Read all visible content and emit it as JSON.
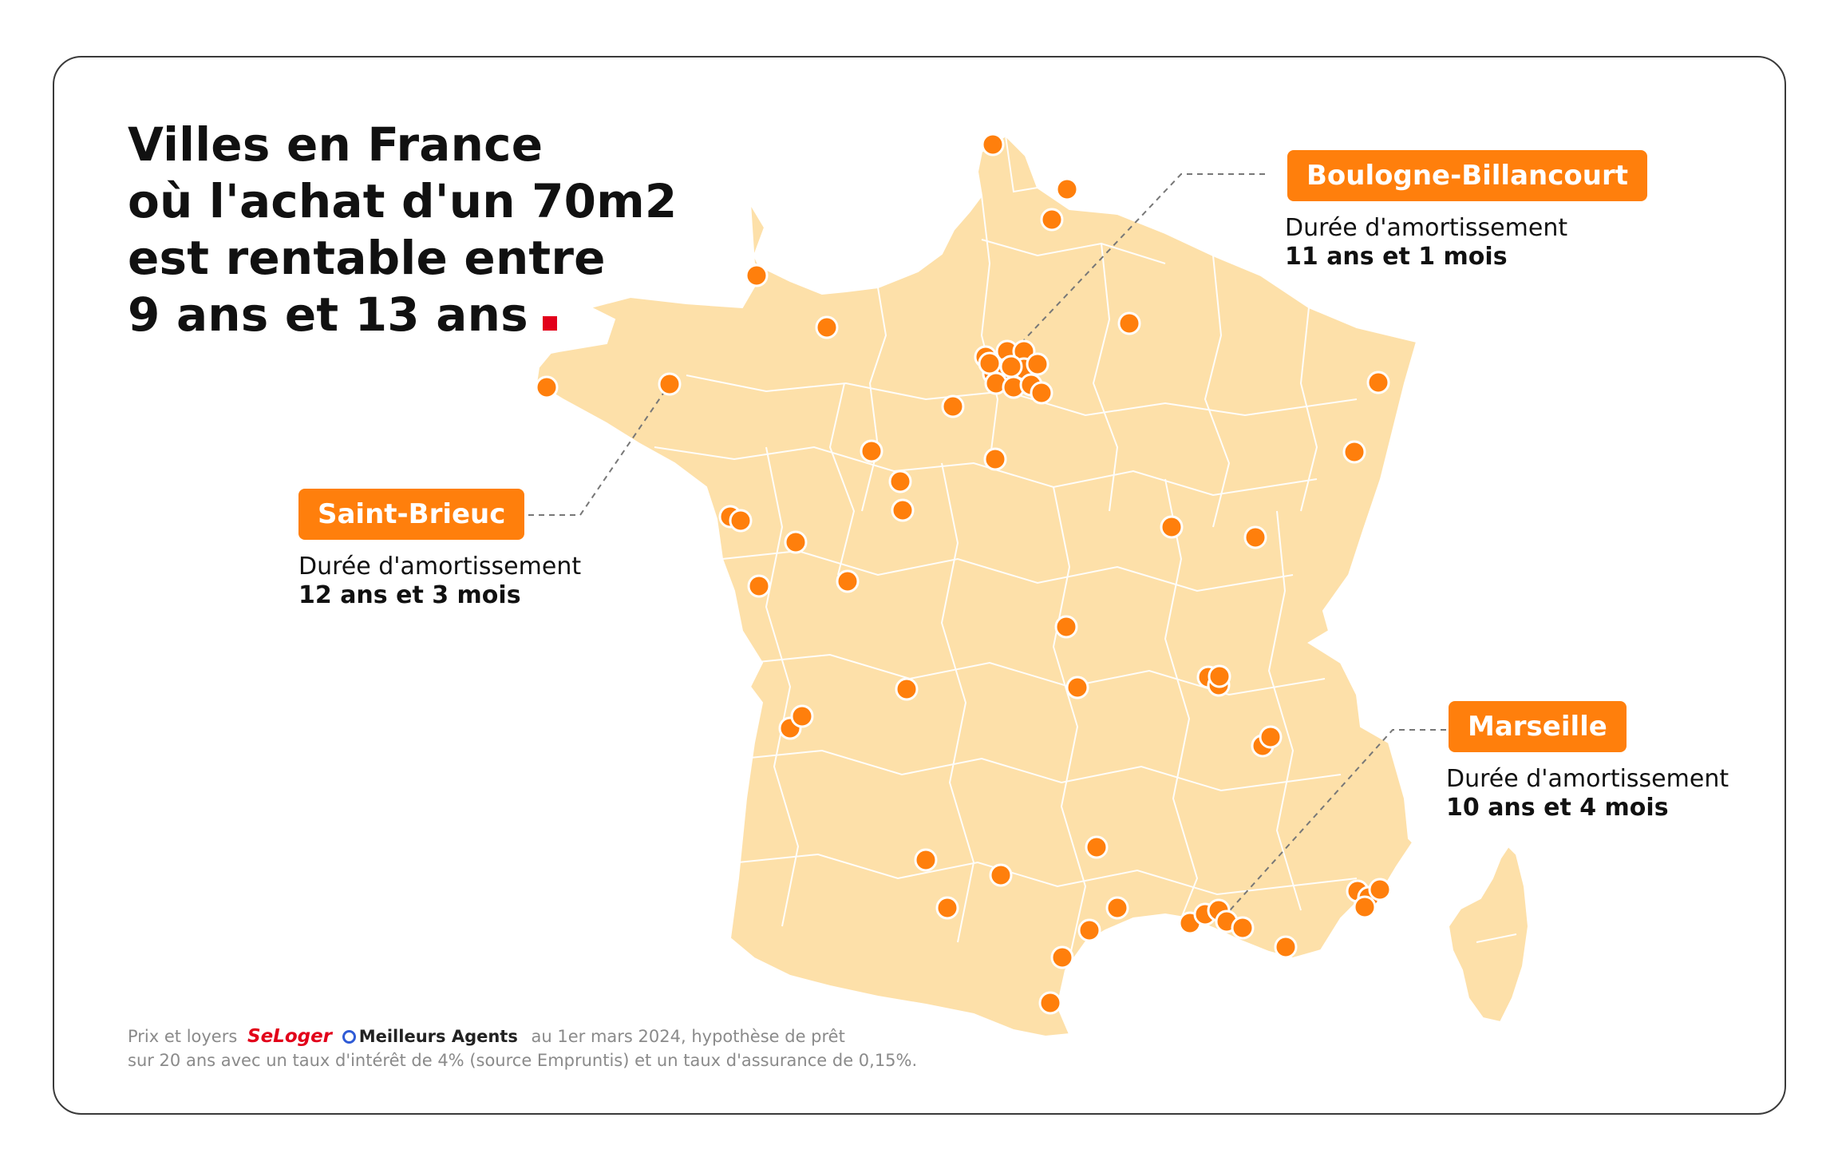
{
  "title": {
    "line1": "Villes en France",
    "line2": "où l'achat d'un 70m2",
    "line3": "est rentable entre",
    "line4": "9 ans et 13 ans"
  },
  "callouts": [
    {
      "city": "Boulogne-Billancourt",
      "label": "Durée d'amortissement",
      "value": "11 ans et 1 mois"
    },
    {
      "city": "Saint-Brieuc",
      "label": "Durée d'amortissement",
      "value": "12 ans et 3 mois"
    },
    {
      "city": "Marseille",
      "label": "Durée d'amortissement",
      "value": "10 ans et 4 mois"
    }
  ],
  "footer": {
    "prefix": "Prix et loyers",
    "brand1": "SeLoger",
    "brand2": "Meilleurs Agents",
    "line1_suffix": "au 1er mars 2024, hypothèse de prêt",
    "line2": "sur 20 ans avec un taux d'intérêt de 4% (source Empruntis) et un taux d'assurance de 0,15%."
  },
  "colors": {
    "marker": "#ff7f0c",
    "land": "#fde0a9",
    "accent": "#e2001a"
  }
}
